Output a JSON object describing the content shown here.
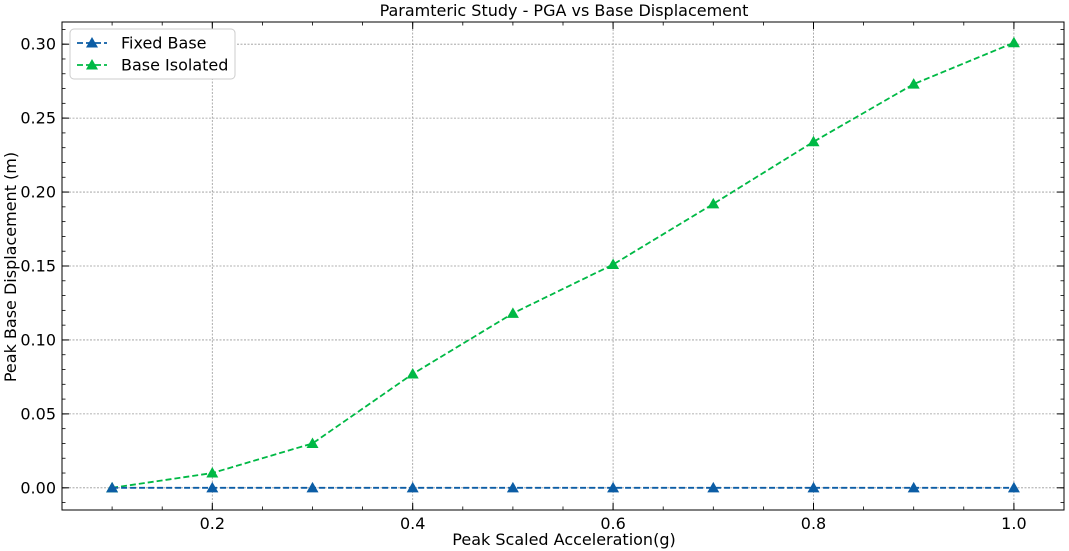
{
  "chart_data": {
    "type": "line",
    "title": "Paramteric Study - PGA vs Base Displacement",
    "xlabel": "Peak Scaled Acceleration(g)",
    "ylabel": "Peak Base Displacement (m)",
    "xlim": [
      0.05,
      1.05
    ],
    "ylim": [
      -0.015,
      0.315
    ],
    "xticks": [
      0.2,
      0.4,
      0.6,
      0.8,
      1.0
    ],
    "xtick_labels": [
      "0.2",
      "0.4",
      "0.6",
      "0.8",
      "1.0"
    ],
    "yticks": [
      0.0,
      0.05,
      0.1,
      0.15,
      0.2,
      0.25,
      0.3
    ],
    "ytick_labels": [
      "0.00",
      "0.05",
      "0.10",
      "0.15",
      "0.20",
      "0.25",
      "0.30"
    ],
    "grid": true,
    "legend_position": "top-left",
    "x": [
      0.1,
      0.2,
      0.3,
      0.4,
      0.5,
      0.6,
      0.7,
      0.8,
      0.9,
      1.0
    ],
    "series": [
      {
        "name": "Fixed Base",
        "color": "#0C5DA5",
        "line_style": "dashed",
        "marker": "triangle-up",
        "values": [
          0.0,
          0.0,
          0.0,
          0.0,
          0.0,
          0.0,
          0.0,
          0.0,
          0.0,
          0.0
        ]
      },
      {
        "name": "Base Isolated",
        "color": "#00B945",
        "line_style": "dashed",
        "marker": "triangle-up",
        "values": [
          0.0,
          0.01,
          0.03,
          0.077,
          0.118,
          0.151,
          0.192,
          0.234,
          0.273,
          0.301
        ]
      }
    ]
  }
}
